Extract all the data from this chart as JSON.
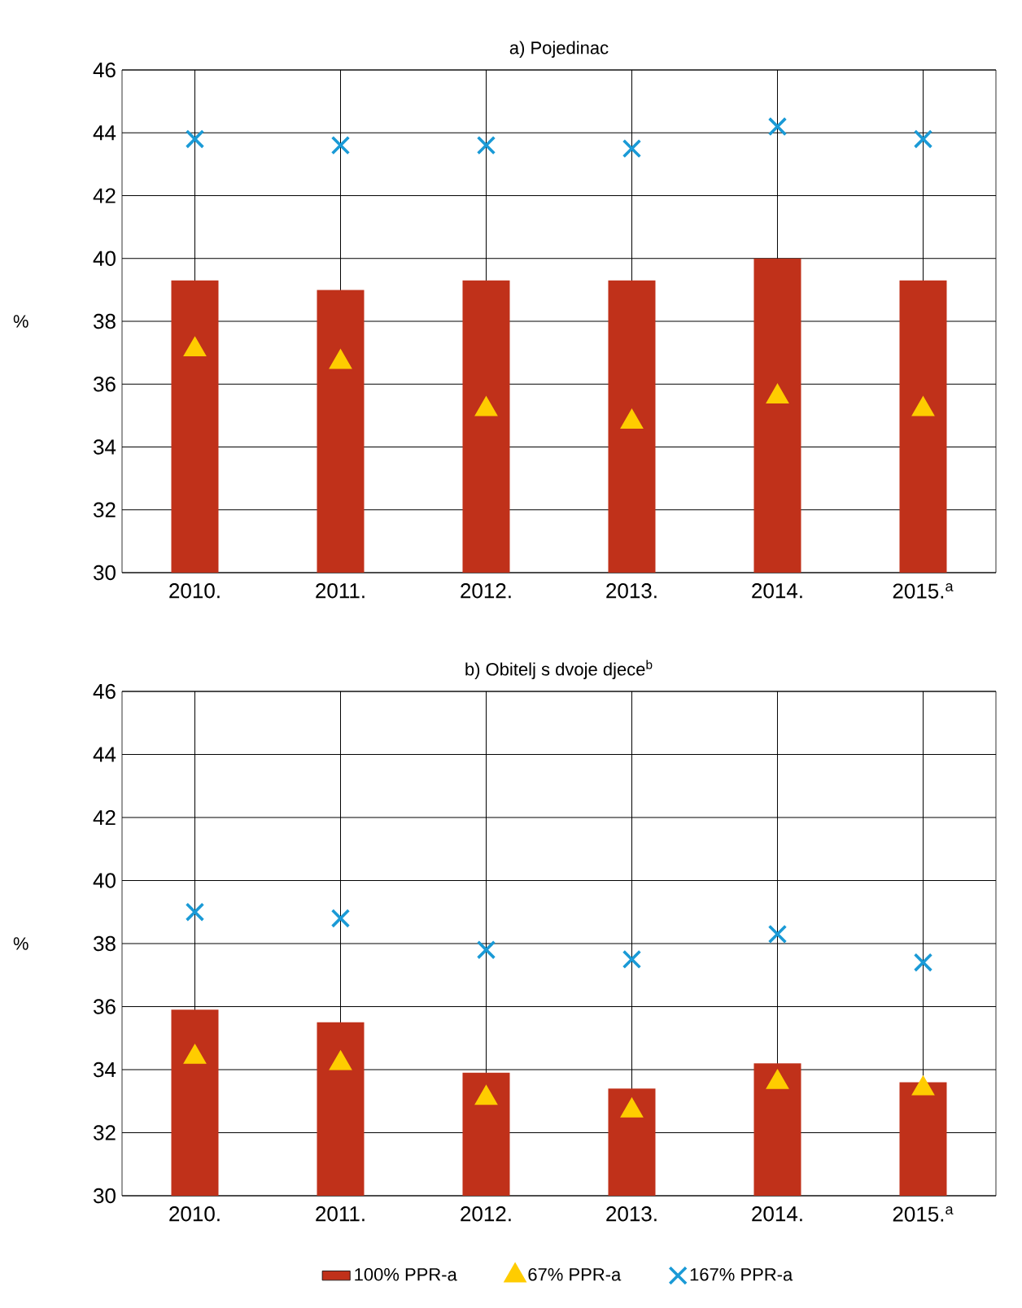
{
  "chart_data": [
    {
      "type": "bar",
      "title": "a) Pojedinac",
      "ylabel": "%",
      "categories": [
        "2010.",
        "2011.",
        "2012.",
        "2013.",
        "2014.",
        "2015.$^{a}$"
      ],
      "ylim": [
        30,
        46
      ],
      "yticks": [
        30,
        32,
        34,
        36,
        38,
        40,
        42,
        44,
        46
      ],
      "grid": true,
      "legend": false,
      "series": [
        {
          "color": "#c0311a",
          "values": [
            39.3,
            39.0,
            39.3,
            39.3,
            40.0,
            39.3
          ]
        },
        {
          "type": "scatter",
          "marker": "triangle",
          "color": "#ffcc00",
          "values": [
            37.1,
            36.7,
            35.2,
            34.8,
            35.6,
            35.2
          ]
        },
        {
          "type": "scatter",
          "marker": "cross",
          "color": "#1a9ad6",
          "values": [
            43.8,
            43.6,
            43.6,
            43.5,
            44.2,
            43.8
          ]
        }
      ]
    },
    {
      "type": "bar",
      "title": "b) Obitelj s dvoje djece$^{b}$",
      "ylabel": "%",
      "categories": [
        "2010.",
        "2011.",
        "2012.",
        "2013.",
        "2014.",
        "2015.$^{a}$"
      ],
      "ylim": [
        30,
        46
      ],
      "yticks": [
        30,
        32,
        34,
        36,
        38,
        40,
        42,
        44,
        46
      ],
      "grid": true,
      "legend": "bottom",
      "series": [
        {
          "name": "100% PPR-a",
          "color": "#c0311a",
          "values": [
            35.9,
            35.5,
            33.9,
            33.4,
            34.2,
            33.6
          ]
        },
        {
          "type": "scatter",
          "name": "67% PPR-a",
          "marker": "triangle",
          "color": "#ffcc00",
          "values": [
            34.4,
            34.2,
            33.1,
            32.7,
            33.6,
            33.4
          ]
        },
        {
          "type": "scatter",
          "name": "167% PPR-a",
          "marker": "cross",
          "color": "#1a9ad6",
          "values": [
            39.0,
            38.8,
            37.8,
            37.5,
            38.3,
            37.4
          ]
        }
      ]
    }
  ]
}
